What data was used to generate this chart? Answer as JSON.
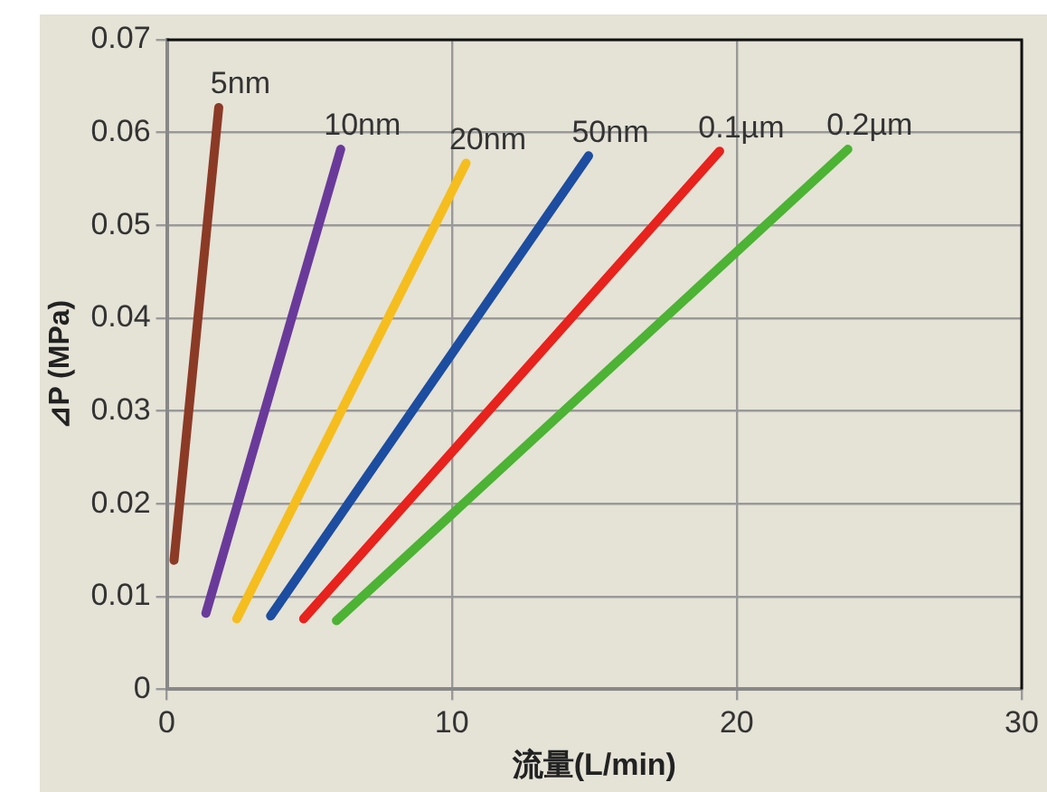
{
  "chart_data": {
    "type": "line",
    "xlabel": "流量(L/min)",
    "ylabel": "⊿P (MPa)",
    "xlim": [
      0,
      30
    ],
    "xticks": [
      0,
      10,
      20,
      30
    ],
    "ylim": [
      0,
      0.07
    ],
    "yticks": [
      0,
      0.01,
      0.02,
      0.03,
      0.04,
      0.05,
      0.06,
      0.07
    ],
    "grid": true,
    "legend": false,
    "marker": "none",
    "line_style": "solid",
    "series": [
      {
        "name": "5nm",
        "color": "#8b3a26",
        "x": [
          0.25,
          1.82
        ],
        "values": [
          0.0139,
          0.0627
        ]
      },
      {
        "name": "10nm",
        "color": "#6a3a9a",
        "x": [
          1.37,
          6.1
        ],
        "values": [
          0.0082,
          0.0582
        ]
      },
      {
        "name": "20nm",
        "color": "#f5be1e",
        "x": [
          2.45,
          10.5
        ],
        "values": [
          0.0076,
          0.0567
        ]
      },
      {
        "name": "50nm",
        "color": "#1c4da0",
        "x": [
          3.64,
          14.8
        ],
        "values": [
          0.0079,
          0.0575
        ]
      },
      {
        "name": "0.1µm",
        "color": "#e8221c",
        "x": [
          4.8,
          19.4
        ],
        "values": [
          0.0076,
          0.058
        ]
      },
      {
        "name": "0.2µm",
        "color": "#4cb334",
        "x": [
          5.95,
          23.9
        ],
        "values": [
          0.0074,
          0.0582
        ]
      }
    ]
  }
}
